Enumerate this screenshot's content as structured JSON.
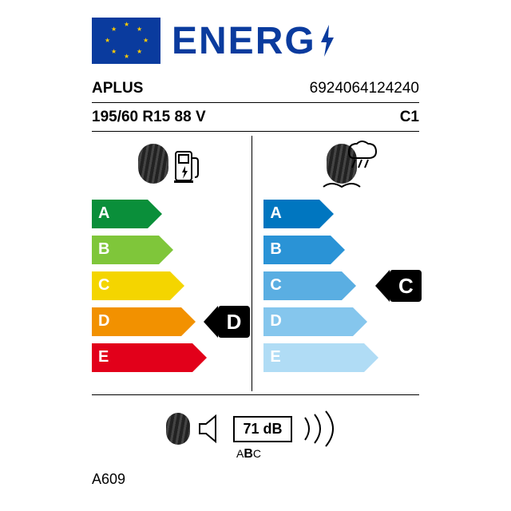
{
  "header": {
    "logo_text": "ENERG"
  },
  "info": {
    "brand": "APLUS",
    "ean": "6924064124240",
    "size": "195/60 R15 88 V",
    "vehicle_class": "C1"
  },
  "fuel": {
    "grades": [
      "A",
      "B",
      "C",
      "D",
      "E"
    ],
    "colors": [
      "#0a8f3a",
      "#7fc63a",
      "#f4d500",
      "#f29100",
      "#e2001a"
    ],
    "widths": [
      70,
      84,
      98,
      112,
      126
    ],
    "rating": "D",
    "rating_index": 3
  },
  "wet": {
    "grades": [
      "A",
      "B",
      "C",
      "D",
      "E"
    ],
    "colors": [
      "#0076c0",
      "#2a93d6",
      "#5aaee2",
      "#85c6ed",
      "#b0dcf5"
    ],
    "widths": [
      70,
      84,
      98,
      112,
      126
    ],
    "rating": "C",
    "rating_index": 2
  },
  "noise": {
    "value": "71 dB",
    "class_letters": [
      "A",
      "B",
      "C"
    ],
    "selected_class": "B"
  },
  "model": "A609"
}
